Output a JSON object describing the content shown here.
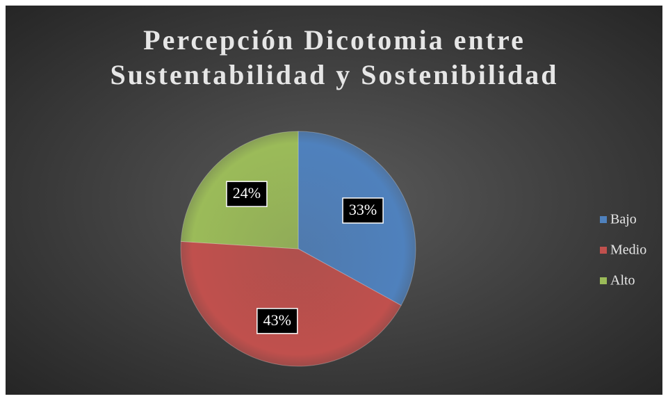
{
  "chart_data": {
    "type": "pie",
    "title": "Percepción Dicotomia entre Sustentabilidad y Sostenibilidad",
    "categories": [
      "Bajo",
      "Medio",
      "Alto"
    ],
    "values": [
      33,
      43,
      24
    ],
    "value_labels": [
      "33%",
      "43%",
      "24%"
    ],
    "colors": [
      "#4f81bd",
      "#c0504d",
      "#9bbb59"
    ],
    "legend": "right"
  }
}
